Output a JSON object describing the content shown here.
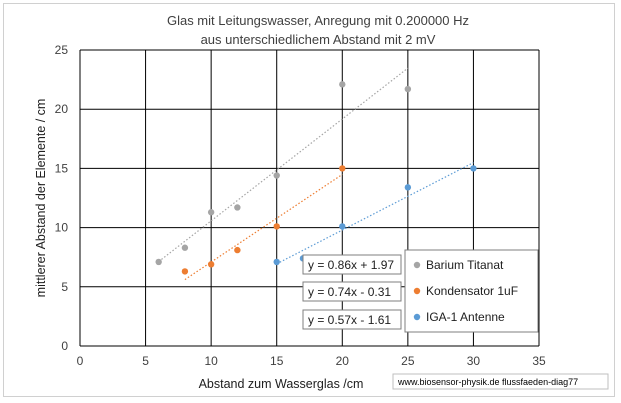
{
  "chart_data": {
    "type": "scatter",
    "title": "Glas mit Leitungswasser, Anregung mit  0.200000 Hz",
    "subtitle": "aus unterschiedlichem Abstand mit 2 mV",
    "xlabel": "Abstand zum Wasserglas  /cm",
    "ylabel": "mittlerer Abstand der Elemente / cm",
    "xlim": [
      0,
      35
    ],
    "ylim": [
      0,
      25
    ],
    "xticks": [
      0,
      5,
      10,
      15,
      20,
      25,
      30,
      35
    ],
    "yticks": [
      0,
      5,
      10,
      15,
      20,
      25
    ],
    "grid": true,
    "legend_position": "right",
    "series": [
      {
        "name": "Barium Titanat",
        "color": "#a5a5a5",
        "points": [
          [
            6,
            7.1
          ],
          [
            8,
            8.3
          ],
          [
            10,
            11.3
          ],
          [
            12,
            11.7
          ],
          [
            15,
            14.4
          ],
          [
            20,
            22.1
          ],
          [
            25,
            21.7
          ]
        ],
        "trendline": {
          "equation": "y = 0.86x + 1.97",
          "slope": 0.86,
          "intercept": 1.97,
          "x_range": [
            6,
            25
          ]
        }
      },
      {
        "name": "Kondensator 1uF",
        "color": "#ed7d31",
        "points": [
          [
            8,
            6.3
          ],
          [
            10,
            6.9
          ],
          [
            12,
            8.1
          ],
          [
            15,
            10.1
          ],
          [
            20,
            15.0
          ]
        ],
        "trendline": {
          "equation": "y = 0.74x - 0.31",
          "slope": 0.74,
          "intercept": -0.31,
          "x_range": [
            8,
            20
          ]
        }
      },
      {
        "name": "IGA-1 Antenne",
        "color": "#5b9bd5",
        "points": [
          [
            15,
            7.1
          ],
          [
            17,
            7.4
          ],
          [
            20,
            10.1
          ],
          [
            25,
            13.4
          ],
          [
            30,
            15.0
          ]
        ],
        "trendline": {
          "equation": "y = 0.57x - 1.61",
          "slope": 0.57,
          "intercept": -1.61,
          "x_range": [
            15,
            30
          ]
        }
      }
    ],
    "source_note": "www.biosensor-physik.de  flussfaeden-diag77"
  }
}
